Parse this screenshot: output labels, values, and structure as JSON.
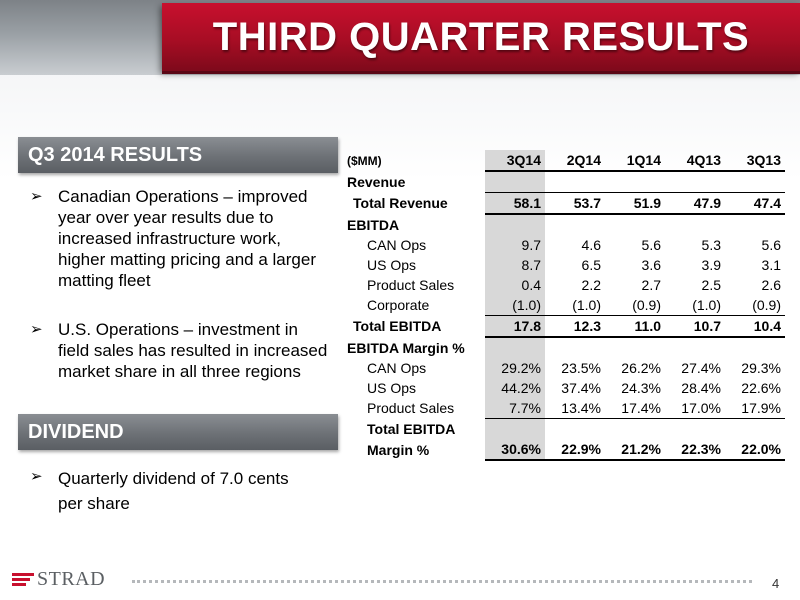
{
  "header": {
    "title": "THIRD QUARTER RESULTS"
  },
  "sections": {
    "results": {
      "heading": "Q3 2014 RESULTS",
      "bullets": [
        "Canadian Operations – improved year over year results due to increased infrastructure work, higher matting pricing and a larger matting fleet",
        "U.S. Operations – investment in field sales has resulted in increased market share in all three regions"
      ]
    },
    "dividend": {
      "heading": "DIVIDEND",
      "bullets": [
        "Quarterly dividend of 7.0 cents per share"
      ]
    }
  },
  "table": {
    "unit": "($MM)",
    "columns": [
      "3Q14",
      "2Q14",
      "1Q14",
      "4Q13",
      "3Q13"
    ],
    "rows": {
      "revenue_header": "Revenue",
      "total_revenue": {
        "label": "Total Revenue",
        "values": [
          "58.1",
          "53.7",
          "51.9",
          "47.9",
          "47.4"
        ]
      },
      "ebitda_header": "EBITDA",
      "can_ops": {
        "label": "CAN Ops",
        "values": [
          "9.7",
          "4.6",
          "5.6",
          "5.3",
          "5.6"
        ]
      },
      "us_ops": {
        "label": "US Ops",
        "values": [
          "8.7",
          "6.5",
          "3.6",
          "3.9",
          "3.1"
        ]
      },
      "product_sales": {
        "label": "Product Sales",
        "values": [
          "0.4",
          "2.2",
          "2.7",
          "2.5",
          "2.6"
        ]
      },
      "corporate": {
        "label": "Corporate",
        "values": [
          "(1.0)",
          "(1.0)",
          "(0.9)",
          "(1.0)",
          "(0.9)"
        ]
      },
      "total_ebitda": {
        "label": "Total EBITDA",
        "values": [
          "17.8",
          "12.3",
          "11.0",
          "10.7",
          "10.4"
        ]
      },
      "margin_header": "EBITDA Margin %",
      "can_ops_margin": {
        "label": "CAN Ops",
        "values": [
          "29.2%",
          "23.5%",
          "26.2%",
          "27.4%",
          "29.3%"
        ]
      },
      "us_ops_margin": {
        "label": "US Ops",
        "values": [
          "44.2%",
          "37.4%",
          "24.3%",
          "28.4%",
          "22.6%"
        ]
      },
      "product_sales_margin": {
        "label": "Product Sales",
        "values": [
          "7.7%",
          "13.4%",
          "17.4%",
          "17.0%",
          "17.9%"
        ]
      },
      "total_margin": {
        "label_line1": "Total EBITDA",
        "label_line2": "Margin %",
        "values": [
          "30.6%",
          "22.9%",
          "21.2%",
          "22.3%",
          "22.0%"
        ]
      }
    }
  },
  "footer": {
    "logo_text": "STRAD",
    "page_number": "4"
  },
  "colors": {
    "accent_red": "#c8102e",
    "section_gray": "#6d7176",
    "highlight": "#d8d8d8"
  }
}
